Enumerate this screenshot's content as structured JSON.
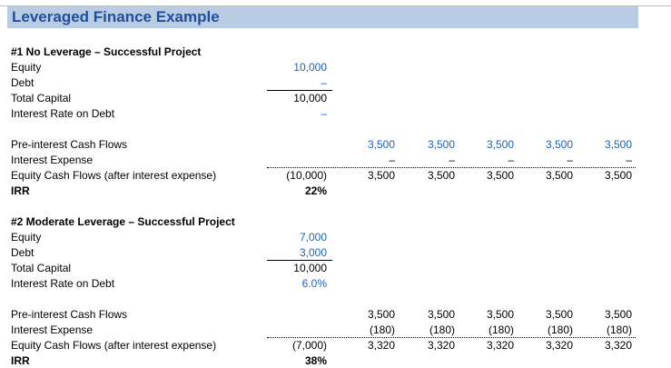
{
  "title": "Leveraged Finance Example",
  "sections": [
    {
      "heading": "#1 No Leverage – Successful Project",
      "equity_label": "Equity",
      "equity": "10,000",
      "debt_label": "Debt",
      "debt": "–",
      "total_label": "Total Capital",
      "total": "10,000",
      "rate_label": "Interest Rate on Debt",
      "rate": "–",
      "cf_label": "Pre-interest Cash Flows",
      "cf": [
        "3,500",
        "3,500",
        "3,500",
        "3,500",
        "3,500"
      ],
      "int_label": "Interest Expense",
      "int": [
        "–",
        "–",
        "–",
        "–",
        "–"
      ],
      "eq_label": "Equity Cash Flows (after interest expense)",
      "eq_initial": "(10,000)",
      "eq": [
        "3,500",
        "3,500",
        "3,500",
        "3,500",
        "3,500"
      ],
      "irr_label": "IRR",
      "irr": "22%"
    },
    {
      "heading": "#2 Moderate Leverage – Successful Project",
      "equity_label": "Equity",
      "equity": "7,000",
      "debt_label": "Debt",
      "debt": "3,000",
      "total_label": "Total Capital",
      "total": "10,000",
      "rate_label": "Interest Rate on Debt",
      "rate": "6.0%",
      "cf_label": "Pre-interest Cash Flows",
      "cf": [
        "3,500",
        "3,500",
        "3,500",
        "3,500",
        "3,500"
      ],
      "int_label": "Interest Expense",
      "int": [
        "(180)",
        "(180)",
        "(180)",
        "(180)",
        "(180)"
      ],
      "eq_label": "Equity Cash Flows (after interest expense)",
      "eq_initial": "(7,000)",
      "eq": [
        "3,320",
        "3,320",
        "3,320",
        "3,320",
        "3,320"
      ],
      "irr_label": "IRR",
      "irr": "38%"
    }
  ]
}
